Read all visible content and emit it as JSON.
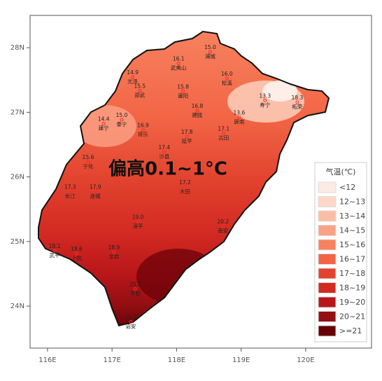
{
  "map": {
    "annotation": "偏高0.1~1°C",
    "xlim": [
      115.73,
      121.02
    ],
    "ylim": [
      23.35,
      28.5
    ],
    "xticks": [
      {
        "value": 116,
        "label": "116E"
      },
      {
        "value": 117,
        "label": "117E"
      },
      {
        "value": 118,
        "label": "118E"
      },
      {
        "value": 119,
        "label": "119E"
      },
      {
        "value": 120,
        "label": "120E"
      }
    ],
    "yticks": [
      {
        "value": 24,
        "label": "24N"
      },
      {
        "value": 25,
        "label": "25N"
      },
      {
        "value": 26,
        "label": "26N"
      },
      {
        "value": 27,
        "label": "27N"
      },
      {
        "value": 28,
        "label": "28N"
      }
    ],
    "legend": {
      "title": "气温(℃)",
      "items": [
        {
          "label": "<12",
          "color": "#fcebe4"
        },
        {
          "label": "12~13",
          "color": "#fdd8c8"
        },
        {
          "label": "13~14",
          "color": "#fcbda6"
        },
        {
          "label": "14~15",
          "color": "#fba286"
        },
        {
          "label": "15~16",
          "color": "#f7825f"
        },
        {
          "label": "16~17",
          "color": "#f26545"
        },
        {
          "label": "17~18",
          "color": "#e2432f"
        },
        {
          "label": "18~19",
          "color": "#d32a22"
        },
        {
          "label": "19~20",
          "color": "#b8161a"
        },
        {
          "label": "20~21",
          "color": "#930f12"
        },
        {
          "label": ">=21",
          "color": "#670007"
        }
      ]
    },
    "stations": [
      {
        "value": "15.0",
        "name": "浦城",
        "lon": 118.52,
        "lat": 28.0
      },
      {
        "value": "16.1",
        "name": "武夷山",
        "lon": 118.03,
        "lat": 27.82
      },
      {
        "value": "14.9",
        "name": "光泽",
        "lon": 117.32,
        "lat": 27.61
      },
      {
        "value": "15.5",
        "name": "邵武",
        "lon": 117.43,
        "lat": 27.4
      },
      {
        "value": "15.8",
        "name": "建阳",
        "lon": 118.1,
        "lat": 27.39
      },
      {
        "value": "16.0",
        "name": "松溪",
        "lon": 118.78,
        "lat": 27.59
      },
      {
        "value": "16.8",
        "name": "建瓯",
        "lon": 118.32,
        "lat": 27.09
      },
      {
        "value": "13.6",
        "name": "屏南",
        "lon": 118.97,
        "lat": 26.99
      },
      {
        "value": "13.3",
        "name": "寿宁",
        "lon": 119.37,
        "lat": 27.25
      },
      {
        "value": "18.3",
        "name": "柘荣",
        "lon": 119.87,
        "lat": 27.22
      },
      {
        "value": "14.4",
        "name": "建宁",
        "lon": 116.87,
        "lat": 26.89
      },
      {
        "value": "15.0",
        "name": "泰宁",
        "lon": 117.15,
        "lat": 26.95
      },
      {
        "value": "16.9",
        "name": "将乐",
        "lon": 117.48,
        "lat": 26.79
      },
      {
        "value": "17.8",
        "name": "延平",
        "lon": 118.16,
        "lat": 26.69
      },
      {
        "value": "17.1",
        "name": "古田",
        "lon": 118.73,
        "lat": 26.74
      },
      {
        "value": "17.4",
        "name": "沙县",
        "lon": 117.81,
        "lat": 26.45
      },
      {
        "value": "15.6",
        "name": "宁化",
        "lon": 116.63,
        "lat": 26.3
      },
      {
        "value": "17.3",
        "name": "长汀",
        "lon": 116.35,
        "lat": 25.84
      },
      {
        "value": "17.9",
        "name": "连城",
        "lon": 116.74,
        "lat": 25.84
      },
      {
        "value": "17.2",
        "name": "大田",
        "lon": 118.13,
        "lat": 25.91
      },
      {
        "value": "19.0",
        "name": "漳平",
        "lon": 117.4,
        "lat": 25.37
      },
      {
        "value": "18.1",
        "name": "武平",
        "lon": 116.11,
        "lat": 24.92
      },
      {
        "value": "18.6",
        "name": "上杭",
        "lon": 116.45,
        "lat": 24.88
      },
      {
        "value": "18.9",
        "name": "龙岩",
        "lon": 117.03,
        "lat": 24.9
      },
      {
        "value": "20.2",
        "name": "南安",
        "lon": 118.72,
        "lat": 25.3
      },
      {
        "value": "20.5",
        "name": "平和",
        "lon": 117.36,
        "lat": 24.33
      },
      {
        "value": "22.7",
        "name": "诏安",
        "lon": 117.29,
        "lat": 23.82
      }
    ]
  }
}
